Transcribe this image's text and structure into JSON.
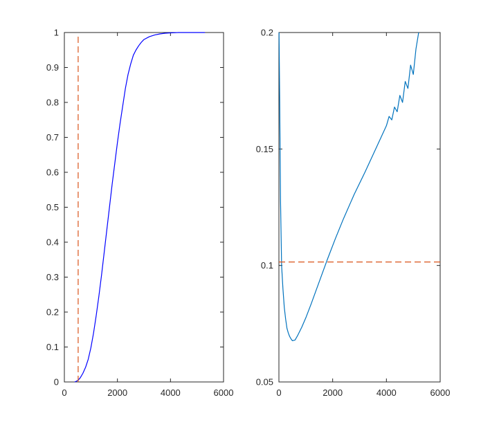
{
  "chart_data": [
    {
      "type": "line",
      "title": "",
      "xlabel": "",
      "ylabel": "",
      "xlim": [
        0,
        6000
      ],
      "ylim": [
        0,
        1
      ],
      "grid": false,
      "x_ticks": [
        0,
        2000,
        4000,
        6000
      ],
      "x_tick_labels": [
        "0",
        "2000",
        "4000",
        "6000"
      ],
      "y_ticks": [
        0,
        0.1,
        0.2,
        0.3,
        0.4,
        0.5,
        0.6,
        0.7,
        0.8,
        0.9,
        1
      ],
      "y_tick_labels": [
        "0",
        "0.1",
        "0.2",
        "0.3",
        "0.4",
        "0.5",
        "0.6",
        "0.7",
        "0.8",
        "0.9",
        "1"
      ],
      "series": [
        {
          "color": "#0000ff",
          "style": "solid",
          "x": [
            390,
            450,
            520,
            600,
            700,
            800,
            900,
            1000,
            1100,
            1200,
            1300,
            1400,
            1500,
            1600,
            1700,
            1800,
            1900,
            2000,
            2100,
            2200,
            2300,
            2400,
            2500,
            2600,
            2700,
            2800,
            2900,
            3000,
            3200,
            3400,
            3600,
            3800,
            4000,
            4300,
            4600,
            5000,
            5300
          ],
          "y": [
            0,
            0.002,
            0.005,
            0.012,
            0.025,
            0.042,
            0.065,
            0.098,
            0.14,
            0.19,
            0.245,
            0.305,
            0.37,
            0.435,
            0.5,
            0.565,
            0.625,
            0.685,
            0.74,
            0.79,
            0.84,
            0.88,
            0.91,
            0.935,
            0.95,
            0.962,
            0.972,
            0.98,
            0.988,
            0.993,
            0.996,
            0.998,
            0.999,
            1,
            1,
            1,
            1
          ]
        },
        {
          "color": "#d95319",
          "style": "dashed",
          "x": [
            520,
            520
          ],
          "y": [
            0,
            0.99
          ]
        }
      ]
    },
    {
      "type": "line",
      "title": "",
      "xlabel": "",
      "ylabel": "",
      "xlim": [
        0,
        6000
      ],
      "ylim": [
        0.05,
        0.2
      ],
      "grid": false,
      "x_ticks": [
        0,
        2000,
        4000,
        6000
      ],
      "x_tick_labels": [
        "0",
        "2000",
        "4000",
        "6000"
      ],
      "y_ticks": [
        0.05,
        0.1,
        0.15,
        0.2
      ],
      "y_tick_labels": [
        "0.05",
        "0.1",
        "0.15",
        "0.2"
      ],
      "series": [
        {
          "color": "#0072bd",
          "style": "solid",
          "x": [
            5,
            30,
            60,
            100,
            150,
            200,
            250,
            300,
            350,
            400,
            450,
            500,
            600,
            700,
            850,
            1000,
            1200,
            1500,
            1800,
            2100,
            2400,
            2800,
            3200,
            3600,
            3800,
            4000,
            4100,
            4200,
            4300,
            4400,
            4500,
            4600,
            4700,
            4800,
            4900,
            5000,
            5100,
            5200
          ],
          "y": [
            0.2,
            0.17,
            0.128,
            0.1,
            0.09,
            0.082,
            0.077,
            0.073,
            0.071,
            0.0695,
            0.0685,
            0.0677,
            0.068,
            0.07,
            0.0735,
            0.0775,
            0.0835,
            0.093,
            0.1025,
            0.1115,
            0.12,
            0.1305,
            0.14,
            0.15,
            0.155,
            0.16,
            0.164,
            0.1625,
            0.168,
            0.166,
            0.173,
            0.17,
            0.179,
            0.176,
            0.186,
            0.182,
            0.193,
            0.2
          ]
        },
        {
          "color": "#d95319",
          "style": "dashed",
          "x": [
            0,
            6000
          ],
          "y": [
            0.1015,
            0.1015
          ]
        }
      ]
    }
  ]
}
